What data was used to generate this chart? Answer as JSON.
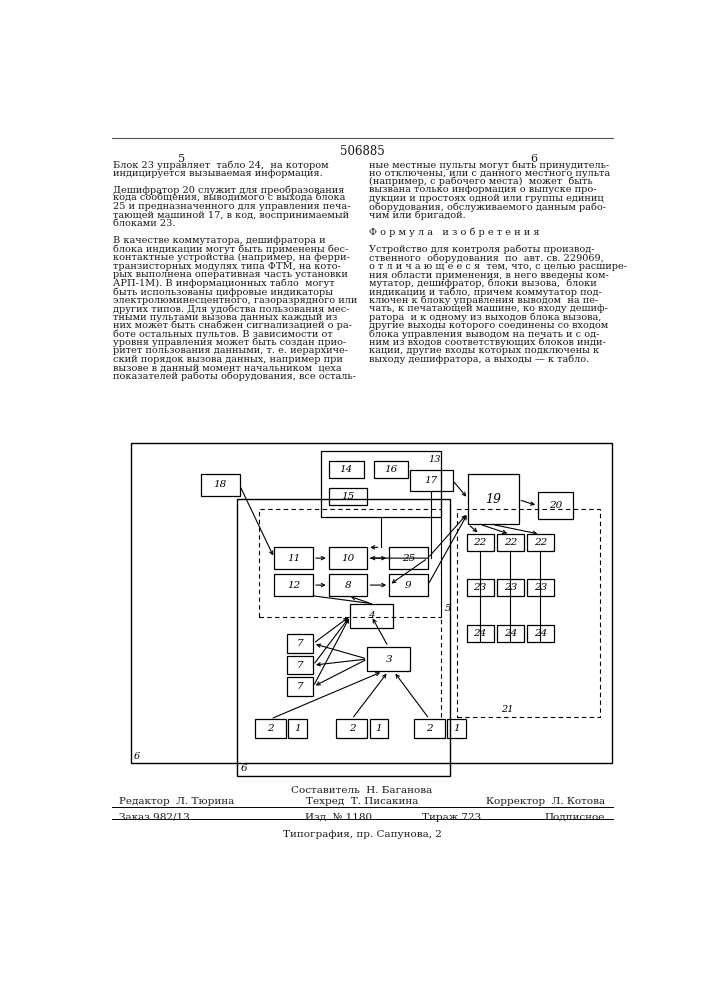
{
  "patent_number": "506885",
  "page_numbers": [
    "5",
    "6"
  ],
  "left_column_text": [
    "Блок 23 управляет  табло 24,  на котором",
    "индицируется вызываемая информация.",
    "",
    "Дешифратор 20 служит для преобразования",
    "кода сообщения, выводимого с выхода блока",
    "25 и предназначенного для управления печа-",
    "тающей машиной 17, в код, воспринимаемый",
    "блоками 23.",
    "",
    "В качестве коммутатора, дешифратора и",
    "блока индикации могут быть применены бес-",
    "контактные устройства (например, на ферри-",
    "транзисторных модулях типа ФТМ, на кото-",
    "рых выполнена оперативная часть установки",
    "АРП-1М). В информационных табло  могут",
    "быть использованы цифровые индикаторы",
    "электролюминесцентного, газоразрядного или",
    "других типов. Для удобства пользования мес-",
    "тными пультами вызова данных каждый из",
    "них может быть снабжен сигнализацией о ра-",
    "боте остальных пультов. В зависимости от",
    "уровня управления может быть создан прио-",
    "ритет пользования данными, т. е. иерархиче-",
    "ский порядок вызова данных, например при",
    "вызове в данный момент начальником  цеха",
    "показателей работы оборудования, все осталь-"
  ],
  "right_column_text": [
    "ные местные пульты могут быть принудитель-",
    "но отключены, или с данного местного пульта",
    "(например, с рабочего места)  может  быть",
    "вызвана только информация о выпуске про-",
    "дукции и простоях одной или группы единиц",
    "оборудования, обслуживаемого данным рабо-",
    "чим или бригадой.",
    "",
    "Ф о р м у л а   и з о б р е т е н и я",
    "",
    "Устройство для контроля работы производ-",
    "ственного  оборудования  по  авт. св. 229069,",
    "о т л и ч а ю щ е е с я  тем, что, с целью расшире-",
    "ния области применения, в него введены ком-",
    "мутатор, дешифратор, блоки вызова,  блоки",
    "индикации и табло, причем коммутатор под-",
    "ключен к блоку управления выводом  на пе-",
    "чать, к печатающей машине, ко входу дешиф-",
    "ратора  и к одному из выходов блока вызова,",
    "другие выходы которого соединены со входом",
    "блока управления выводом на печать и с од-",
    "ним из входов соответствующих блоков инди-",
    "кации, другие входы которых подключены к",
    "выходу дешифратора, а выходы — к табло."
  ],
  "footer_line1": "Составитель  Н. Баганова",
  "footer_editor": "Редактор  Л. Тюрина",
  "footer_tech": "Техред  Т. Писакина",
  "footer_corrector": "Корректор  Л. Котова",
  "footer_order": "Заказ 982/13",
  "footer_pub": "Изд. № 1180",
  "footer_copies": "Тираж 723",
  "footer_sign": "Подписное",
  "footer_print": "Типография, пр. Сапунова, 2",
  "bg_color": "#ffffff",
  "text_color": "#1a1a1a",
  "line_color": "#333333"
}
